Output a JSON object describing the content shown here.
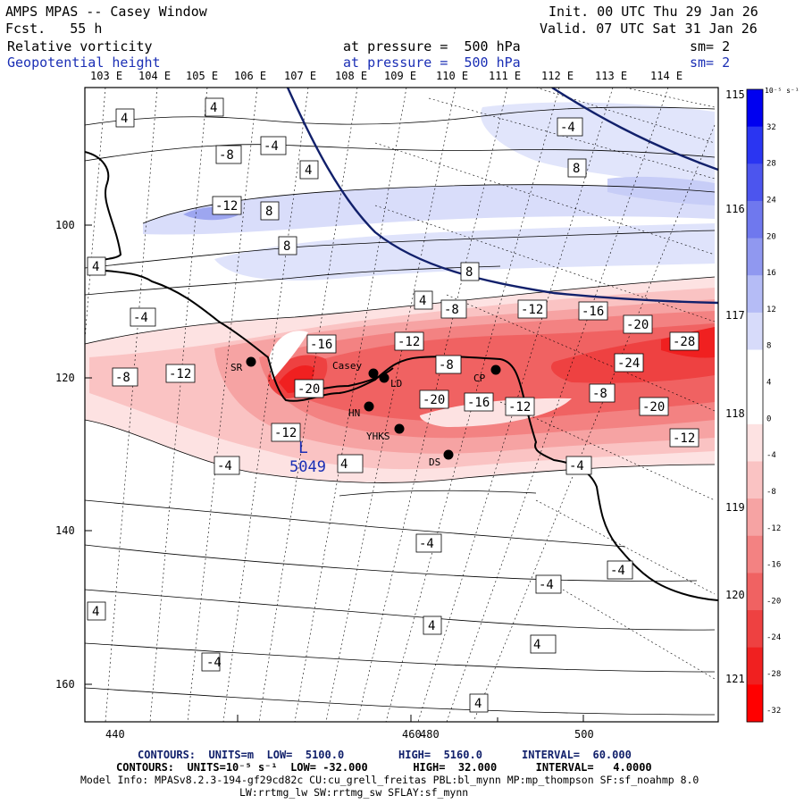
{
  "header": {
    "title": "AMPS MPAS -- Casey Window",
    "forecast": "Fcst.   55 h",
    "init": "Init. 00 UTC Thu 29 Jan 26",
    "valid": "Valid. 07 UTC Sat 31 Jan 26",
    "field1_name": "Relative vorticity",
    "field1_level": "at pressure =  500 hPa",
    "field1_smooth": "sm= 2",
    "field2_name": "Geopotential height",
    "field2_level": "at pressure =  500 hPa",
    "field2_smooth": "sm= 2"
  },
  "top_longitudes": [
    "103 E",
    "104 E",
    "105 E",
    "106 E",
    "107 E",
    "108 E",
    "109 E",
    "110 E",
    "111 E",
    "112 E",
    "113 E",
    "114 E"
  ],
  "right_longitudes": [
    "115 E",
    "116 E",
    "117 E",
    "118 E",
    "119 E",
    "120 E",
    "121 E"
  ],
  "x_ticks": [
    "440",
    "460",
    "480",
    "500"
  ],
  "y_ticks": [
    "100",
    "120",
    "140",
    "160"
  ],
  "colorbar": {
    "unit": "10⁻⁵ s⁻¹",
    "labels": [
      "32",
      "28",
      "24",
      "20",
      "16",
      "12",
      "8",
      "4",
      "0",
      "-4",
      "-8",
      "-12",
      "-16",
      "-20",
      "-24",
      "-28",
      "-32"
    ],
    "colors": [
      "#0000f0",
      "#2a35f2",
      "#4c55ee",
      "#6f78ee",
      "#9098f0",
      "#b5bcf6",
      "#d7dbfa",
      "#ffffff",
      "#ffffff",
      "#fde2e2",
      "#fac3c3",
      "#f6a3a3",
      "#f38282",
      "#f06262",
      "#ee4141",
      "#f02020",
      "#ff0000"
    ]
  },
  "contour_labels": [
    "4",
    "4",
    "-4",
    "-8",
    "4",
    "-12",
    "8",
    "8",
    "-4",
    "8",
    "8",
    "4",
    "-8",
    "-12",
    "-16",
    "-20",
    "-4",
    "-16",
    "-12",
    "-8",
    "-12",
    "-24",
    "-28",
    "-12",
    "-20",
    "-16",
    "-8",
    "-20",
    "-8",
    "-20",
    "-12",
    "-12",
    "-4",
    "-4",
    "-4",
    "-4",
    "-4",
    "4",
    "4",
    "4",
    "-4",
    "4",
    "4",
    "4"
  ],
  "stations": [
    "SR",
    "Casey",
    "LD",
    "HN",
    "CP",
    "YHKS",
    "DS"
  ],
  "low_marker": {
    "symbol": "L",
    "value": "5049"
  },
  "footer": {
    "line1_a": "CONTOURS:  UNITS=m  LOW=  5100.0",
    "line1_b": "HIGH=  5160.0",
    "line1_c": "INTERVAL=  60.000",
    "line2": "CONTOURS:  UNITS=10⁻⁵ s⁻¹  LOW= -32.000       HIGH=  32.000      INTERVAL=   4.0000",
    "line3": "Model Info: MPASv8.2.3-194-gf29cd82c CU:cu_grell_freitas PBL:bl_mynn MP:mp_thompson SF:sf_noahmp 8.0",
    "line4": "LW:rrtmg_lw SW:rrtmg_sw SFLAY:sf_mynn"
  },
  "colors": {
    "height_contour": "#11206b",
    "vorticity_contour": "#000000"
  }
}
